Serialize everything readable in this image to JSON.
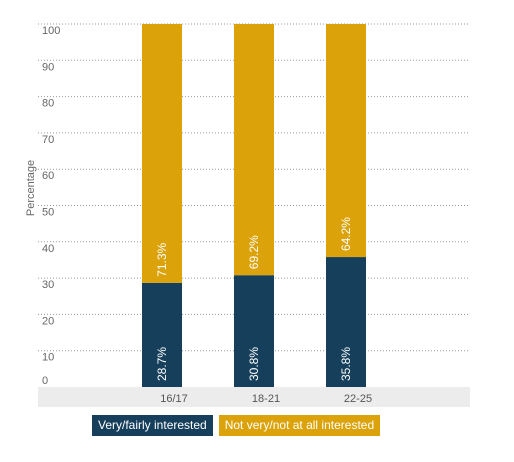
{
  "chart_data": {
    "type": "bar",
    "stacked": true,
    "orientation": "vertical",
    "categories": [
      "16/17",
      "18-21",
      "22-25"
    ],
    "series": [
      {
        "name": "Very/fairly interested",
        "values": [
          28.7,
          30.8,
          35.8
        ],
        "labels": [
          "28.7%",
          "30.8%",
          "35.8%"
        ],
        "color": "#163f5c"
      },
      {
        "name": "Not very/not at all interested",
        "values": [
          71.3,
          69.2,
          64.2
        ],
        "labels": [
          "71.3%",
          "69.2%",
          "64.2%"
        ],
        "color": "#dba209"
      }
    ],
    "ylabel": "Percentage",
    "ylim": [
      0,
      100
    ],
    "yticks": [
      "0",
      "10",
      "20",
      "30",
      "40",
      "50",
      "60",
      "70",
      "80",
      "90",
      "100"
    ],
    "grid": true,
    "legend_position": "bottom"
  }
}
